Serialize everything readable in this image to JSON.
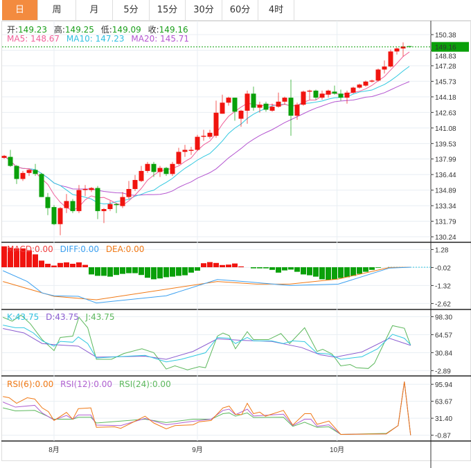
{
  "tabs": [
    {
      "label": "日",
      "active": true
    },
    {
      "label": "周"
    },
    {
      "label": "月"
    },
    {
      "label": "5分"
    },
    {
      "label": "15分"
    },
    {
      "label": "30分"
    },
    {
      "label": "60分"
    },
    {
      "label": "4时"
    }
  ],
  "ohlc_legend": {
    "open_label": "开:",
    "open": "149.23",
    "high_label": "高:",
    "high": "149.25",
    "low_label": "低:",
    "low": "149.09",
    "close_label": "收:",
    "close": "149.16"
  },
  "ma_legend": {
    "ma5": "MA5: 148.67",
    "ma10": "MA10: 147.23",
    "ma20": "MA20: 145.71"
  },
  "macd_legend": {
    "macd": "MACD:0.00",
    "diff": "DIFF:0.00",
    "dea": "DEA:0.00"
  },
  "kdj_legend": {
    "k": "K:43.75",
    "d": "D:43.75",
    "j": "J:43.75"
  },
  "rsi_legend": {
    "rsi6": "RSI(6):0.00",
    "rsi12": "RSI(12):0.00",
    "rsi24": "RSI(24):0.00"
  },
  "current_price": "149.16",
  "colors": {
    "up": "#f0140f",
    "down": "#0aa00a",
    "ma5": "#f0609a",
    "ma10": "#30c8e0",
    "ma20": "#b455d0",
    "diff": "#3ca0f0",
    "dea": "#f07814",
    "k": "#30c8e0",
    "d": "#8a5cd0",
    "j": "#5cb85c",
    "rsi6": "#f07814",
    "rsi12": "#b060d0",
    "rsi24": "#5cb85c",
    "price_tag": "#0aa00a"
  },
  "chart_data": {
    "type": "candlestick",
    "price_axis": {
      "ticks": [
        "150.38",
        "148.83",
        "147.28",
        "145.73",
        "144.18",
        "142.63",
        "141.08",
        "139.53",
        "137.99",
        "136.44",
        "134.89",
        "133.34",
        "131.79",
        "130.24"
      ],
      "range": [
        130.24,
        150.38
      ]
    },
    "x_ticks": [
      {
        "label": "8月",
        "index": 8.0
      },
      {
        "label": "9月",
        "index": 31.0
      },
      {
        "label": "10月",
        "index": 53.4
      }
    ],
    "candles": [
      [
        138.1,
        138.3,
        138.4,
        138.0
      ],
      [
        138.2,
        137.3,
        138.9,
        137.2
      ],
      [
        137.3,
        136.0,
        137.4,
        135.5
      ],
      [
        136.0,
        136.6,
        136.8,
        135.8
      ],
      [
        136.6,
        136.9,
        137.0,
        136.3
      ],
      [
        136.9,
        136.5,
        137.5,
        136.3
      ],
      [
        136.5,
        134.2,
        136.6,
        134.2
      ],
      [
        134.2,
        133.1,
        134.6,
        132.4
      ],
      [
        133.2,
        131.5,
        133.4,
        131.4
      ],
      [
        131.5,
        133.1,
        133.2,
        130.4
      ],
      [
        133.1,
        133.8,
        134.5,
        132.6
      ],
      [
        133.8,
        132.8,
        134.0,
        132.6
      ],
      [
        132.8,
        134.9,
        135.4,
        132.6
      ],
      [
        134.9,
        135.0,
        135.4,
        134.3
      ],
      [
        134.9,
        135.1,
        135.2,
        134.7
      ],
      [
        135.1,
        132.8,
        135.3,
        132.0
      ],
      [
        132.8,
        133.0,
        133.1,
        131.6
      ],
      [
        133.0,
        133.5,
        133.8,
        132.8
      ],
      [
        133.5,
        133.4,
        133.6,
        132.6
      ],
      [
        133.3,
        134.2,
        134.7,
        133.1
      ],
      [
        134.2,
        135.0,
        135.8,
        134.0
      ],
      [
        135.0,
        135.9,
        136.4,
        134.8
      ],
      [
        135.8,
        136.8,
        137.3,
        135.7
      ],
      [
        136.8,
        137.5,
        137.7,
        136.6
      ],
      [
        137.5,
        136.7,
        137.7,
        136.2
      ],
      [
        136.7,
        137.1,
        137.3,
        136.2
      ],
      [
        137.1,
        136.5,
        137.2,
        136.3
      ],
      [
        136.5,
        137.5,
        137.7,
        136.3
      ],
      [
        137.5,
        138.7,
        139.1,
        137.4
      ],
      [
        138.7,
        138.9,
        139.4,
        138.2
      ],
      [
        138.8,
        138.9,
        139.2,
        138.4
      ],
      [
        138.9,
        140.2,
        140.4,
        138.8
      ],
      [
        140.2,
        140.3,
        140.9,
        139.8
      ],
      [
        140.2,
        140.6,
        140.9,
        140.0
      ],
      [
        140.3,
        142.6,
        143.8,
        140.1
      ],
      [
        142.5,
        143.6,
        144.4,
        142.5
      ],
      [
        143.6,
        144.1,
        144.2,
        143.3
      ],
      [
        144.1,
        142.7,
        144.1,
        141.8
      ],
      [
        142.0,
        142.8,
        142.9,
        141.2
      ],
      [
        142.8,
        144.5,
        144.8,
        141.5
      ],
      [
        144.5,
        143.1,
        145.2,
        142.8
      ],
      [
        143.1,
        143.4,
        143.7,
        142.6
      ],
      [
        143.5,
        142.9,
        143.7,
        142.7
      ],
      [
        142.8,
        143.2,
        143.5,
        142.7
      ],
      [
        143.2,
        143.7,
        144.6,
        143.1
      ],
      [
        143.7,
        144.1,
        144.2,
        143.4
      ],
      [
        144.1,
        142.3,
        145.9,
        140.3
      ],
      [
        142.3,
        143.4,
        143.6,
        141.9
      ],
      [
        143.4,
        144.7,
        144.8,
        143.3
      ],
      [
        144.7,
        144.8,
        144.9,
        143.9
      ],
      [
        144.8,
        144.1,
        144.9,
        143.9
      ],
      [
        144.1,
        144.5,
        144.8,
        143.9
      ],
      [
        144.4,
        144.8,
        144.9,
        144.1
      ],
      [
        144.7,
        144.5,
        145.3,
        144.4
      ],
      [
        144.5,
        144.1,
        144.9,
        143.8
      ],
      [
        144.1,
        144.6,
        144.8,
        143.5
      ],
      [
        144.6,
        145.1,
        145.2,
        144.5
      ],
      [
        145.1,
        145.4,
        145.5,
        145.0
      ],
      [
        145.3,
        145.7,
        145.8,
        145.2
      ],
      [
        145.7,
        145.8,
        145.9,
        145.6
      ],
      [
        145.8,
        146.9,
        147.0,
        145.7
      ],
      [
        146.9,
        147.2,
        147.8,
        146.5
      ],
      [
        147.2,
        148.7,
        148.9,
        147.1
      ],
      [
        148.7,
        149.0,
        149.1,
        148.4
      ],
      [
        149.0,
        149.2,
        149.6,
        148.2
      ],
      [
        149.23,
        149.16,
        149.25,
        149.09
      ]
    ],
    "macd": {
      "axis_ticks": [
        "1.28",
        "-0.02",
        "-1.32",
        "-2.62"
      ],
      "range": [
        -2.9,
        1.65
      ],
      "histogram": [
        1.51,
        1.41,
        1.36,
        1.36,
        1.22,
        0.93,
        0.48,
        0.25,
        0.12,
        0.31,
        0.35,
        0.25,
        0.35,
        0.17,
        -0.52,
        -0.62,
        -0.62,
        -0.68,
        -0.56,
        -0.48,
        -0.43,
        -0.43,
        -0.56,
        -0.76,
        -0.87,
        -0.81,
        -0.72,
        -0.68,
        -0.62,
        -0.58,
        -0.39,
        -0.25,
        0.29,
        0.37,
        0.31,
        0.16,
        0.19,
        0.27,
        0.06,
        0.0,
        -0.08,
        -0.08,
        -0.08,
        -0.19,
        -0.39,
        -0.23,
        -0.17,
        -0.33,
        -0.52,
        -0.58,
        -0.68,
        -0.87,
        -0.91,
        -0.87,
        -0.78,
        -0.72,
        -0.62,
        -0.48,
        -0.33,
        -0.19,
        -0.04,
        0,
        0,
        0,
        0,
        0
      ],
      "diff": [
        [
          -0.2,
          -0.25
        ],
        [
          3.7,
          -1.03
        ],
        [
          6.1,
          -1.86
        ],
        [
          8.0,
          -2.06
        ],
        [
          11.9,
          -2.1
        ],
        [
          14.8,
          -2.58
        ],
        [
          26.0,
          -2.06
        ],
        [
          34.2,
          -0.89
        ],
        [
          39.5,
          -1.07
        ],
        [
          45.8,
          -1.32
        ],
        [
          53.6,
          -1.22
        ],
        [
          61.8,
          -0.06
        ],
        [
          65.2,
          0.0
        ]
      ],
      "dea": [
        [
          -0.2,
          -1.03
        ],
        [
          8.0,
          -2.1
        ],
        [
          14.8,
          -2.35
        ],
        [
          34.2,
          -1.03
        ],
        [
          40.5,
          -1.22
        ],
        [
          45.8,
          -1.22
        ],
        [
          53.6,
          -0.85
        ],
        [
          61.8,
          -0.02
        ],
        [
          65.2,
          0.0
        ]
      ]
    },
    "kdj": {
      "axis_ticks": [
        "98.30",
        "64.57",
        "30.84",
        "-2.89"
      ],
      "range": [
        -9,
        108
      ],
      "k": [
        [
          -0.2,
          82.5
        ],
        [
          1.8,
          77.6
        ],
        [
          3.2,
          77.6
        ],
        [
          4.7,
          67.7
        ],
        [
          6.1,
          52.9
        ],
        [
          8.0,
          43
        ],
        [
          9.0,
          51.9
        ],
        [
          11.0,
          50.4
        ],
        [
          11.9,
          60.3
        ],
        [
          13.4,
          47.9
        ],
        [
          14.8,
          20.8
        ],
        [
          18.2,
          23.2
        ],
        [
          22.6,
          25.7
        ],
        [
          26.0,
          13.4
        ],
        [
          28.4,
          18.3
        ],
        [
          32.3,
          30.6
        ],
        [
          34.2,
          59.3
        ],
        [
          36.1,
          57.8
        ],
        [
          37.1,
          47.9
        ],
        [
          39.0,
          59.3
        ],
        [
          40.0,
          52.9
        ],
        [
          42.9,
          52.9
        ],
        [
          44.8,
          47.9
        ],
        [
          46.3,
          52.9
        ],
        [
          48.2,
          51.4
        ],
        [
          50.2,
          29.7
        ],
        [
          52.1,
          28.2
        ],
        [
          54.0,
          18.3
        ],
        [
          57.4,
          23.2
        ],
        [
          59.9,
          38
        ],
        [
          62.3,
          65.2
        ],
        [
          64.2,
          57.8
        ],
        [
          65.2,
          45.5
        ]
      ],
      "d": [
        [
          -0.2,
          76.1
        ],
        [
          3.2,
          67.7
        ],
        [
          6.1,
          47.9
        ],
        [
          8.5,
          45.5
        ],
        [
          11.9,
          43
        ],
        [
          14.8,
          22.3
        ],
        [
          22.6,
          24.2
        ],
        [
          26.0,
          18.3
        ],
        [
          30.3,
          33.1
        ],
        [
          34.2,
          56.8
        ],
        [
          38.1,
          53.9
        ],
        [
          42.9,
          51.9
        ],
        [
          47.7,
          40.5
        ],
        [
          50.7,
          26.7
        ],
        [
          53.1,
          22.3
        ],
        [
          57.4,
          32.1
        ],
        [
          61.8,
          57.8
        ],
        [
          65.2,
          44.5
        ]
      ],
      "j": [
        [
          -0.2,
          97.3
        ],
        [
          1.3,
          89.9
        ],
        [
          2.7,
          101.3
        ],
        [
          4.2,
          85
        ],
        [
          6.1,
          55.3
        ],
        [
          8.0,
          34.6
        ],
        [
          9.0,
          59.3
        ],
        [
          11.0,
          61.8
        ],
        [
          12.0,
          97.3
        ],
        [
          13.4,
          77.6
        ],
        [
          14.8,
          18.3
        ],
        [
          17.2,
          18.3
        ],
        [
          19.2,
          29.2
        ],
        [
          22.1,
          38.1
        ],
        [
          24.0,
          30.7
        ],
        [
          26.0,
          0
        ],
        [
          27.4,
          6
        ],
        [
          29.4,
          -1.5
        ],
        [
          31.3,
          4.5
        ],
        [
          32.3,
          2.5
        ],
        [
          34.2,
          61.8
        ],
        [
          35.1,
          67.7
        ],
        [
          36.1,
          62.8
        ],
        [
          37.1,
          38.1
        ],
        [
          39.0,
          70.2
        ],
        [
          40.0,
          55.3
        ],
        [
          42.4,
          55.3
        ],
        [
          44.4,
          66.7
        ],
        [
          45.8,
          47.9
        ],
        [
          48.2,
          77.6
        ],
        [
          50.2,
          33.1
        ],
        [
          51.1,
          37.1
        ],
        [
          52.6,
          28.2
        ],
        [
          54.0,
          6
        ],
        [
          55.5,
          8.5
        ],
        [
          56.5,
          2.5
        ],
        [
          58.4,
          1
        ],
        [
          59.4,
          10.9
        ],
        [
          60.3,
          33.1
        ],
        [
          62.3,
          81.5
        ],
        [
          64.2,
          76.6
        ],
        [
          65.2,
          44.5
        ]
      ]
    },
    "rsi": {
      "axis_ticks": [
        "95.94",
        "63.67",
        "31.40",
        "-0.87"
      ],
      "range": [
        -8,
        108
      ],
      "rsi6": [
        [
          -0.2,
          72.8
        ],
        [
          0.8,
          70.4
        ],
        [
          2.0,
          59.8
        ],
        [
          3.7,
          70.4
        ],
        [
          4.9,
          68
        ],
        [
          6.1,
          51.1
        ],
        [
          7.1,
          43.9
        ],
        [
          8.0,
          27.1
        ],
        [
          10.0,
          42.5
        ],
        [
          11.0,
          29.5
        ],
        [
          11.9,
          49.7
        ],
        [
          13.9,
          51.1
        ],
        [
          14.8,
          14.1
        ],
        [
          17.7,
          15
        ],
        [
          18.7,
          12.1
        ],
        [
          22.6,
          35.3
        ],
        [
          24.0,
          22.3
        ],
        [
          26.0,
          11.2
        ],
        [
          27.4,
          17.4
        ],
        [
          30.3,
          18.9
        ],
        [
          31.3,
          24.7
        ],
        [
          33.2,
          27.1
        ],
        [
          35.1,
          51.1
        ],
        [
          36.1,
          54.5
        ],
        [
          37.1,
          39.1
        ],
        [
          38.1,
          38.1
        ],
        [
          39.0,
          59.8
        ],
        [
          40.0,
          40.1
        ],
        [
          41.0,
          43
        ],
        [
          41.9,
          35.3
        ],
        [
          44.8,
          46.3
        ],
        [
          46.3,
          18.4
        ],
        [
          48.2,
          40.1
        ],
        [
          49.2,
          40.1
        ],
        [
          50.2,
          19.8
        ],
        [
          52.1,
          26.1
        ],
        [
          54.0,
          0.6
        ],
        [
          61.3,
          1.6
        ],
        [
          63.2,
          17.4
        ],
        [
          64.2,
          101
        ],
        [
          65.2,
          -0.87
        ]
      ],
      "rsi12": [
        [
          -0.2,
          62.2
        ],
        [
          1.8,
          52.6
        ],
        [
          4.9,
          56
        ],
        [
          6.1,
          41.5
        ],
        [
          8.0,
          28
        ],
        [
          10.0,
          36.7
        ],
        [
          11.0,
          29.5
        ],
        [
          11.9,
          37.7
        ],
        [
          13.9,
          37.7
        ],
        [
          14.8,
          18.4
        ],
        [
          18.7,
          17.4
        ],
        [
          22.6,
          31
        ],
        [
          26.0,
          18.9
        ],
        [
          30.3,
          25.6
        ],
        [
          33.2,
          29.5
        ],
        [
          35.1,
          46.3
        ],
        [
          36.1,
          48.7
        ],
        [
          37.1,
          38.1
        ],
        [
          39.0,
          48.7
        ],
        [
          40.0,
          35.7
        ],
        [
          44.8,
          39.1
        ],
        [
          46.3,
          17.4
        ],
        [
          48.2,
          29.5
        ],
        [
          49.2,
          29.5
        ],
        [
          50.2,
          16
        ],
        [
          52.1,
          18.9
        ],
        [
          54.0,
          0.6
        ],
        [
          61.3,
          1.6
        ],
        [
          63.2,
          17.4
        ],
        [
          64.2,
          101
        ],
        [
          65.2,
          -0.87
        ]
      ],
      "rsi24": [
        [
          -0.2,
          51.1
        ],
        [
          1.8,
          45.4
        ],
        [
          4.9,
          46.3
        ],
        [
          8.0,
          29.5
        ],
        [
          11.0,
          29.5
        ],
        [
          11.9,
          33.3
        ],
        [
          13.9,
          33.3
        ],
        [
          14.8,
          22.3
        ],
        [
          22.6,
          29.5
        ],
        [
          26.0,
          23.2
        ],
        [
          30.3,
          29.5
        ],
        [
          33.2,
          29.5
        ],
        [
          35.1,
          40.1
        ],
        [
          36.1,
          41.5
        ],
        [
          37.1,
          35.3
        ],
        [
          39.0,
          41.5
        ],
        [
          40.0,
          32.8
        ],
        [
          44.8,
          33.3
        ],
        [
          46.3,
          16
        ],
        [
          48.2,
          23.7
        ],
        [
          50.2,
          14.1
        ],
        [
          52.1,
          15
        ],
        [
          54.0,
          0.6
        ],
        [
          61.3,
          2.5
        ],
        [
          63.2,
          17.4
        ],
        [
          64.2,
          101
        ],
        [
          65.2,
          -0.87
        ]
      ]
    }
  }
}
